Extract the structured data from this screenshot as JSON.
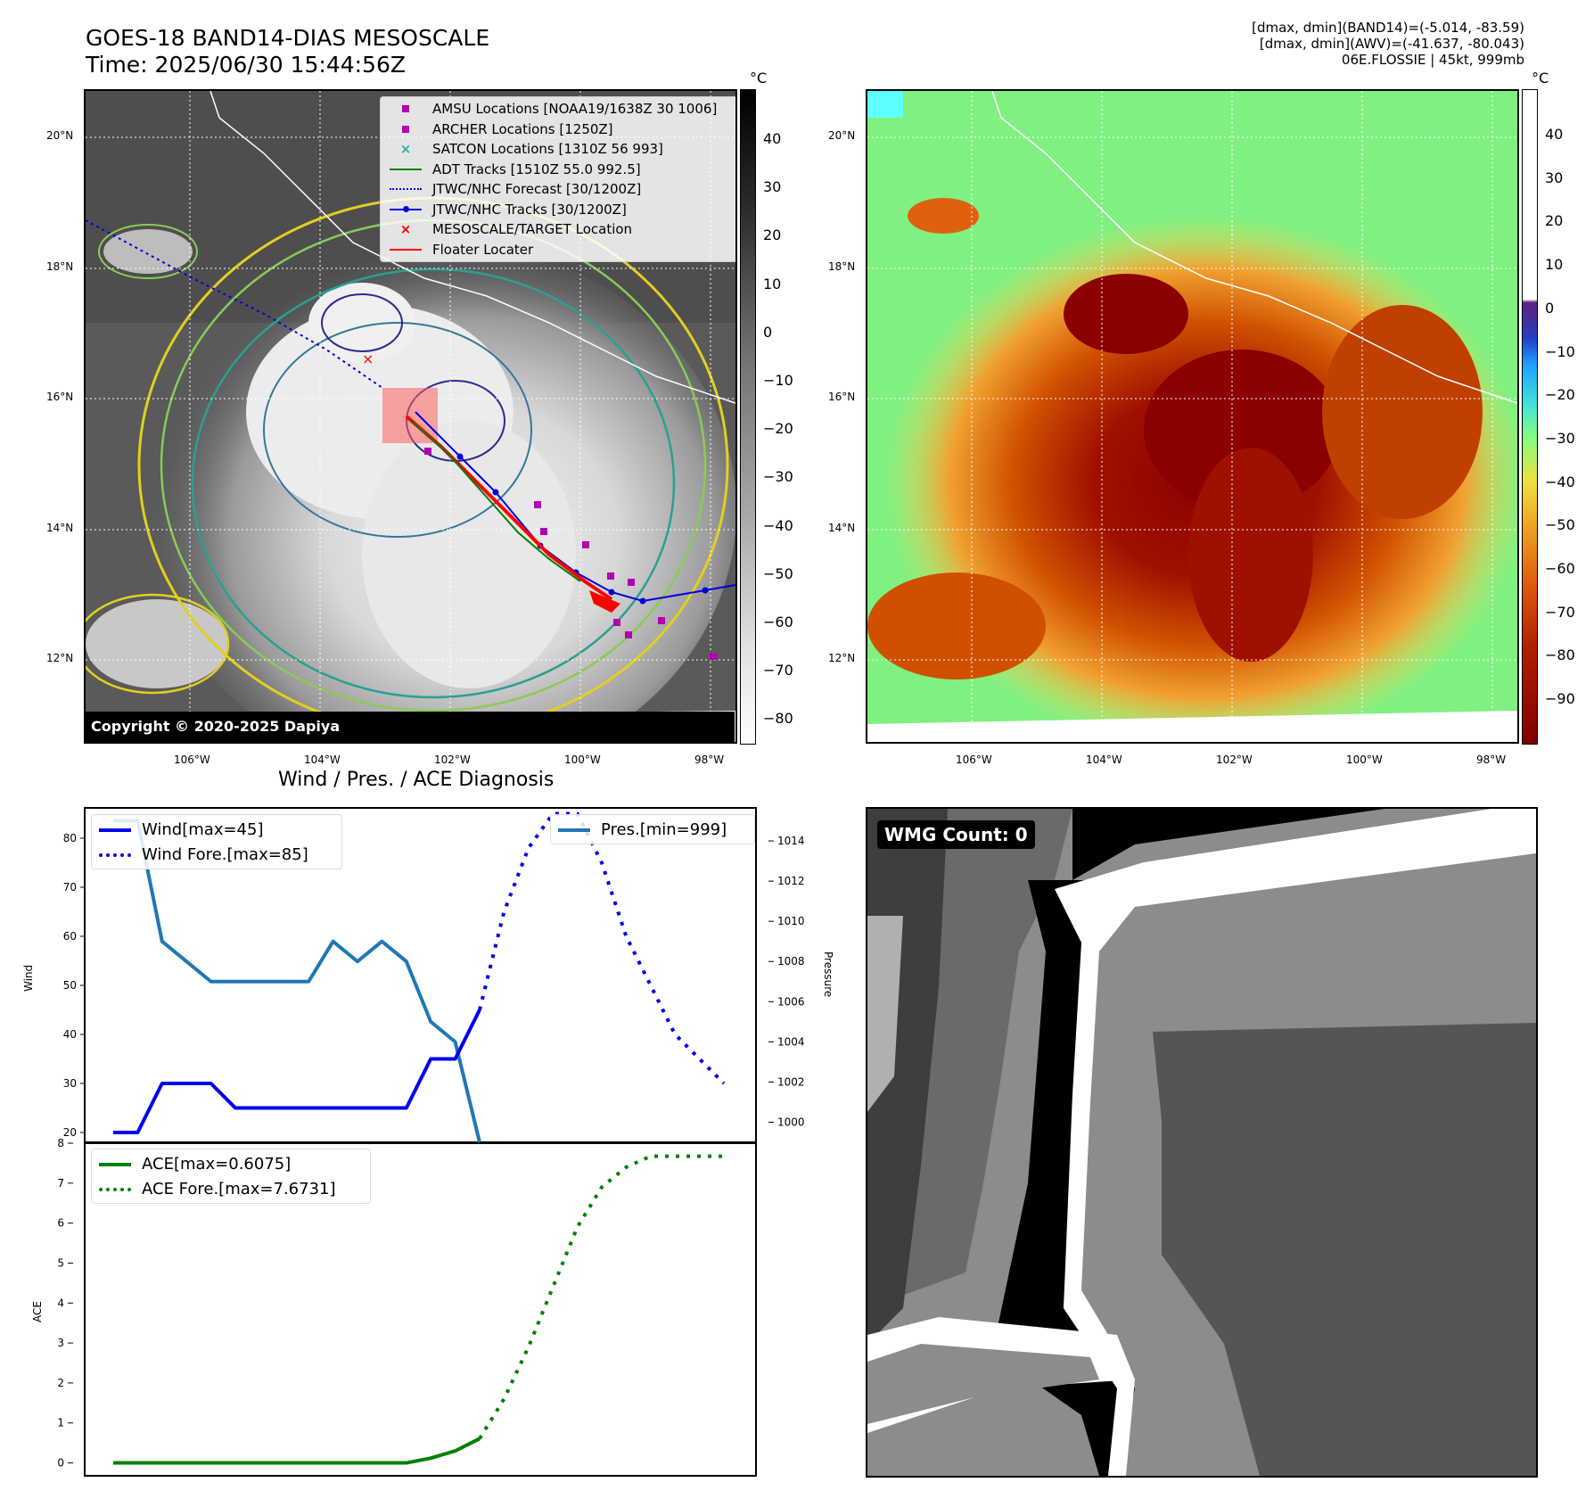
{
  "header": {
    "title_line1": "GOES-18 BAND14-DIAS MESOSCALE",
    "title_line2": "Time: 2025/06/30 15:44:56Z",
    "info_line1": "[dmax, dmin](BAND14)=(-5.014, -83.59)",
    "info_line2": "[dmax, dmin](AWV)=(-41.637, -80.043)",
    "info_line3": "06E.FLOSSIE | 45kt, 999mb"
  },
  "map_axes": {
    "lon_labels": [
      "106°W",
      "104°W",
      "102°W",
      "100°W",
      "98°W"
    ],
    "lat_labels": [
      "20°N",
      "18°N",
      "16°N",
      "14°N",
      "12°N"
    ]
  },
  "ir_panel": {
    "legend": [
      {
        "label": "AMSU Locations [NOAA19/1638Z 30 1006]",
        "symbol": "square",
        "color": "#b000b0"
      },
      {
        "label": "ARCHER Locations [1250Z]",
        "symbol": "square",
        "color": "#b000b0"
      },
      {
        "label": "SATCON Locations [1310Z 56 993]",
        "symbol": "x",
        "color": "#20b0b0"
      },
      {
        "label": "ADT Tracks [1510Z 55.0 992.5]",
        "symbol": "line",
        "color": "#008000"
      },
      {
        "label": "JTWC/NHC Forecast [30/1200Z]",
        "symbol": "dotted",
        "color": "#0000dd"
      },
      {
        "label": "JTWC/NHC Tracks [30/1200Z]",
        "symbol": "line-dot",
        "color": "#0000dd"
      },
      {
        "label": "MESOSCALE/TARGET Location",
        "symbol": "x",
        "color": "#ff0000"
      },
      {
        "label": "Floater Locater",
        "symbol": "line",
        "color": "#ff0000"
      }
    ],
    "copyright": "Copyright © 2020-2025 Dapiya",
    "colorbar_unit": "°C",
    "colorbar_ticks": [
      "40",
      "30",
      "20",
      "10",
      "0",
      "−10",
      "−20",
      "−30",
      "−40",
      "−50",
      "−60",
      "−70",
      "−80"
    ]
  },
  "awv_panel": {
    "colorbar_unit": "°C",
    "colorbar_ticks": [
      "40",
      "30",
      "20",
      "10",
      "0",
      "−10",
      "−20",
      "−30",
      "−40",
      "−50",
      "−60",
      "−70",
      "−80",
      "−90"
    ]
  },
  "wmg_panel": {
    "label": "WMG Count: 0"
  },
  "chart_data": [
    {
      "type": "line",
      "title": "Wind / Pres. / ACE Diagnosis",
      "ylabel": "Wind",
      "ylabel_right": "Pressure",
      "ylim": [
        18,
        86
      ],
      "ylim_right": [
        999.0,
        1015.6
      ],
      "yticks": [
        20,
        30,
        40,
        50,
        60,
        70,
        80
      ],
      "yticks_right": [
        1000,
        1002,
        1004,
        1006,
        1008,
        1010,
        1012,
        1014
      ],
      "series": [
        {
          "name": "Wind[max=45]",
          "axis": "left",
          "style": "solid",
          "color": "#0000ee",
          "x": [
            0,
            1,
            2,
            3,
            4,
            5,
            6,
            7,
            8,
            9,
            10,
            11,
            12,
            13,
            14,
            15
          ],
          "values": [
            20,
            20,
            30,
            30,
            30,
            25,
            25,
            25,
            25,
            25,
            25,
            25,
            25,
            35,
            35,
            45
          ]
        },
        {
          "name": "Wind Fore.[max=85]",
          "axis": "left",
          "style": "dotted",
          "color": "#0000ee",
          "x": [
            15,
            16,
            17,
            18,
            19,
            20,
            21,
            22,
            23,
            24,
            25
          ],
          "values": [
            45,
            65,
            78,
            85,
            85,
            75,
            60,
            50,
            40,
            35,
            30
          ]
        },
        {
          "name": "Pres.[min=999]",
          "axis": "right",
          "style": "solid",
          "color": "#1f77b4",
          "x": [
            0,
            1,
            2,
            3,
            4,
            5,
            6,
            7,
            8,
            9,
            10,
            11,
            12,
            13,
            14,
            15
          ],
          "values": [
            1015,
            1015,
            1009,
            1008,
            1007,
            1007,
            1007,
            1007,
            1007,
            1009,
            1008,
            1009,
            1008,
            1005,
            1004,
            999
          ]
        }
      ]
    },
    {
      "type": "line",
      "ylabel": "ACE",
      "ylim": [
        -0.3,
        8
      ],
      "yticks": [
        0,
        1,
        2,
        3,
        4,
        5,
        6,
        7,
        8
      ],
      "series": [
        {
          "name": "ACE[max=0.6075]",
          "style": "solid",
          "color": "#008000",
          "x": [
            0,
            1,
            2,
            3,
            4,
            5,
            6,
            7,
            8,
            9,
            10,
            11,
            12,
            13,
            14,
            15
          ],
          "values": [
            0,
            0,
            0,
            0,
            0,
            0,
            0,
            0,
            0,
            0,
            0,
            0,
            0,
            0.12,
            0.3,
            0.6075
          ]
        },
        {
          "name": "ACE Fore.[max=7.6731]",
          "style": "dotted",
          "color": "#008000",
          "x": [
            15,
            16,
            17,
            18,
            19,
            20,
            21,
            22,
            23,
            24,
            25
          ],
          "values": [
            0.6075,
            1.6,
            2.9,
            4.4,
            5.9,
            6.9,
            7.4,
            7.6731,
            7.6731,
            7.6731,
            7.6731
          ]
        }
      ]
    }
  ]
}
